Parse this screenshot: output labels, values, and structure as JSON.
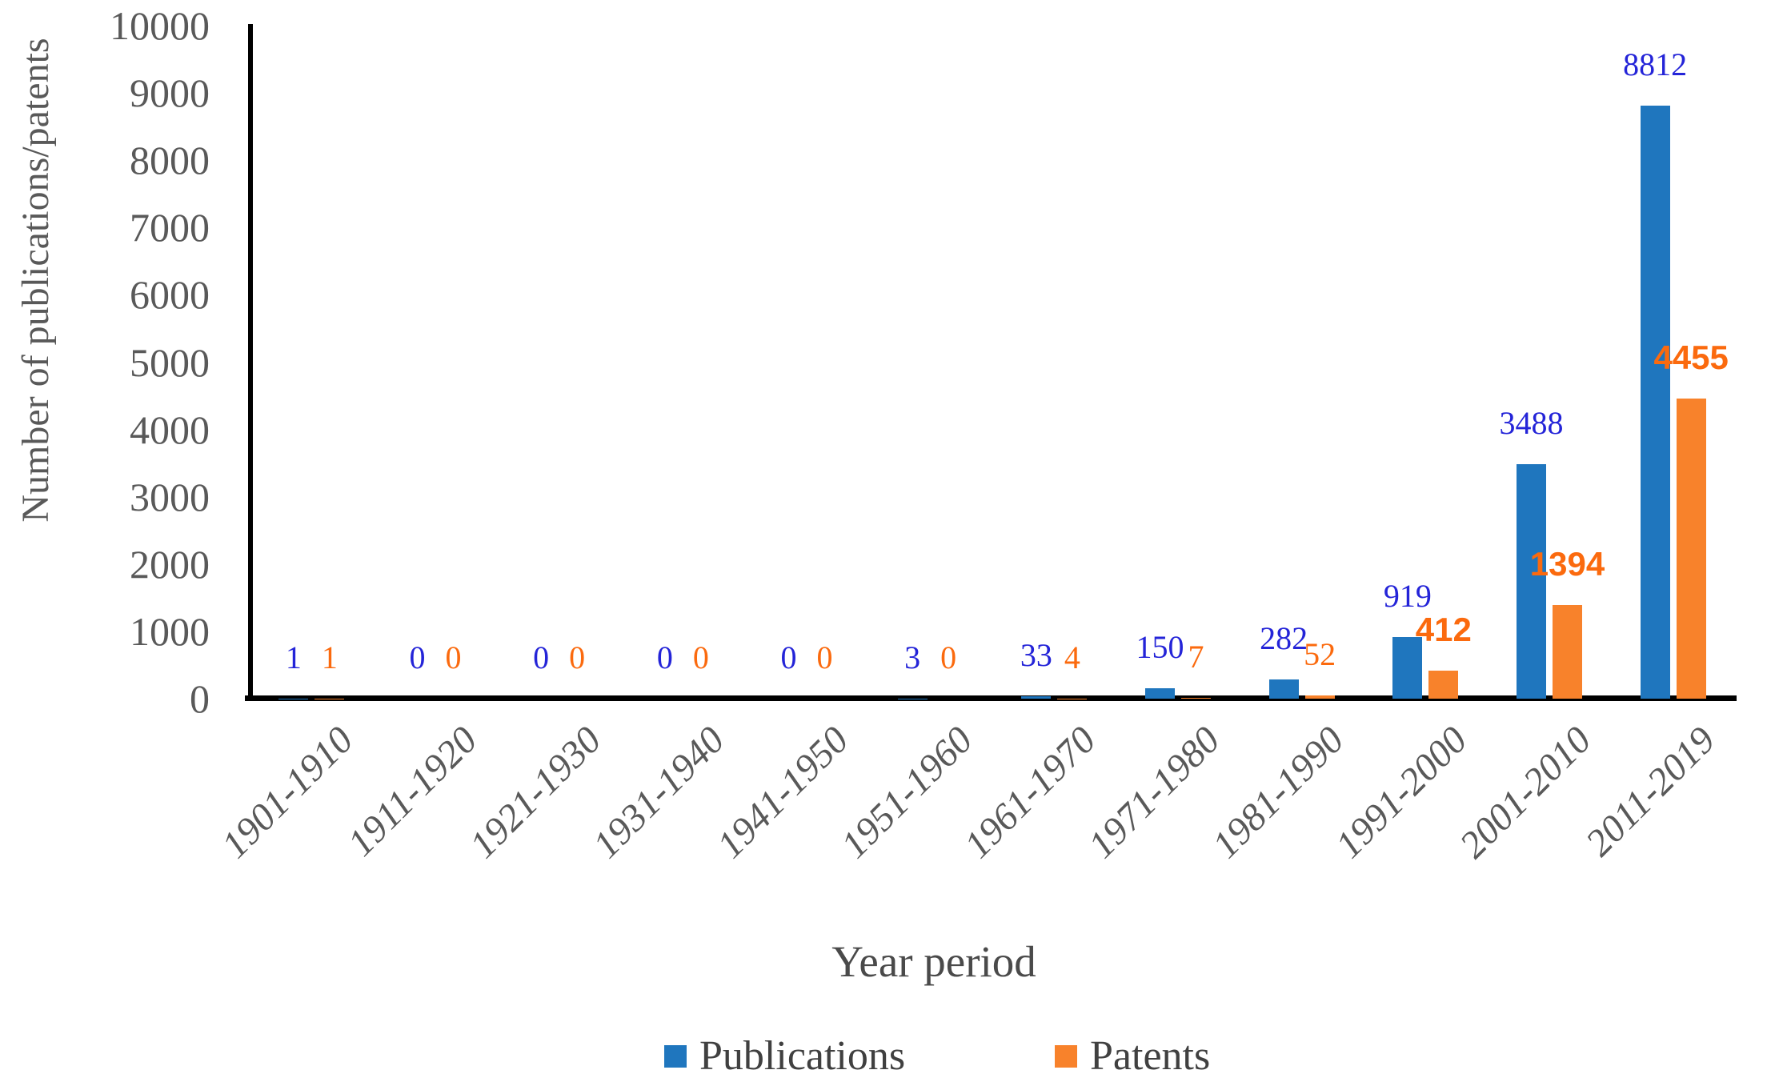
{
  "chart_data": {
    "type": "bar",
    "title": "",
    "xlabel": "Year period",
    "ylabel": "Number of publications/patents",
    "categories": [
      "1901-1910",
      "1911-1920",
      "1921-1930",
      "1931-1940",
      "1941-1950",
      "1951-1960",
      "1961-1970",
      "1971-1980",
      "1981-1990",
      "1991-2000",
      "2001-2010",
      "2011-2019"
    ],
    "series": [
      {
        "name": "Publications",
        "bar_color": "#1F76BE",
        "label_color": "#2424D8",
        "values": [
          1,
          0,
          0,
          0,
          0,
          3,
          33,
          150,
          282,
          919,
          3488,
          8812
        ]
      },
      {
        "name": "Patents",
        "bar_color": "#F8822B",
        "label_color": "#FB6A0E",
        "values": [
          1,
          0,
          0,
          0,
          0,
          0,
          4,
          7,
          52,
          412,
          1394,
          4455
        ],
        "bold_label_min": 400
      }
    ],
    "ylim": [
      0,
      10000
    ],
    "ytick_step": 1000,
    "grid": false,
    "legend_position": "bottom",
    "axis_color": "#000000",
    "tick_label_color": "#595959"
  }
}
